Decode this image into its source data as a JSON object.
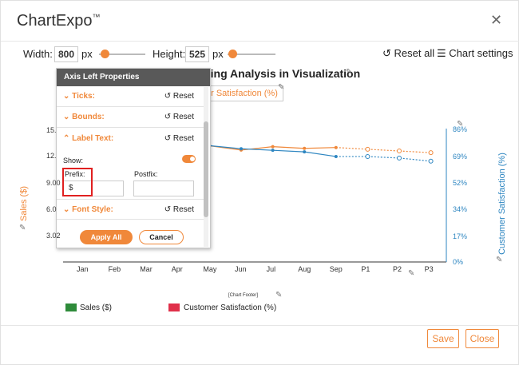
{
  "app": {
    "title": "ChartExpo",
    "tm": "™"
  },
  "toolbar": {
    "width_label": "Width:",
    "width_value": "800",
    "width_unit": "px",
    "height_label": "Height:",
    "height_value": "525",
    "height_unit": "px",
    "reset_all": "Reset all",
    "chart_settings": "Chart settings"
  },
  "chart": {
    "title_visible": "ting Analysis in Visualization",
    "legend_top_visible": "er Satisfaction (%)",
    "y_left_label": "Sales ($)",
    "y_right_label": "Customer Satisfaction (%)",
    "footer": "[Chart Footer]",
    "x_ticks": [
      "Jan",
      "Feb",
      "Mar",
      "Apr",
      "May",
      "Jun",
      "Jul",
      "Aug",
      "Sep",
      "P1",
      "P2",
      "P3"
    ],
    "y_left_ticks": [
      "15.",
      "12.",
      "9.00",
      "6.0",
      "3.02"
    ],
    "y_right_ticks": [
      "86%",
      "69%",
      "52%",
      "34%",
      "17%",
      "0%"
    ],
    "legend": [
      {
        "label": "Sales ($)",
        "color": "#2e8b3a"
      },
      {
        "label": "Customer Satisfaction (%)",
        "color": "#e0304a"
      }
    ]
  },
  "chart_data": {
    "type": "line",
    "x": [
      "Jan",
      "Feb",
      "Mar",
      "Apr",
      "May",
      "Jun",
      "Jul",
      "Aug",
      "Sep",
      "P1",
      "P2",
      "P3"
    ],
    "series": [
      {
        "name": "Sales ($)",
        "color": "#f0883a",
        "values": [
          null,
          null,
          null,
          null,
          13.5,
          13.0,
          13.4,
          13.2,
          13.3,
          13.1,
          12.9,
          12.7
        ],
        "projected_from": 8
      },
      {
        "name": "Customer Satisfaction (%)",
        "color": "#2e86c1",
        "values": [
          null,
          null,
          null,
          null,
          75,
          73,
          72,
          71,
          68,
          68,
          67,
          65
        ],
        "projected_from": 8
      }
    ]
  },
  "panel": {
    "title": "Axis Left Properties",
    "rows": [
      {
        "label": "Ticks:",
        "reset": "Reset"
      },
      {
        "label": "Bounds:",
        "reset": "Reset"
      },
      {
        "label": "Label Text:",
        "reset": "Reset"
      }
    ],
    "show_label": "Show:",
    "prefix_label": "Prefix:",
    "prefix_value": "$",
    "postfix_label": "Postfix:",
    "postfix_value": "",
    "font_style_label": "Font Style:",
    "font_style_reset": "Reset",
    "apply_label": "Apply All",
    "cancel_label": "Cancel"
  },
  "footer": {
    "save": "Save",
    "close": "Close"
  },
  "colors": {
    "accent": "#f0883a",
    "blue": "#2e86c1"
  }
}
